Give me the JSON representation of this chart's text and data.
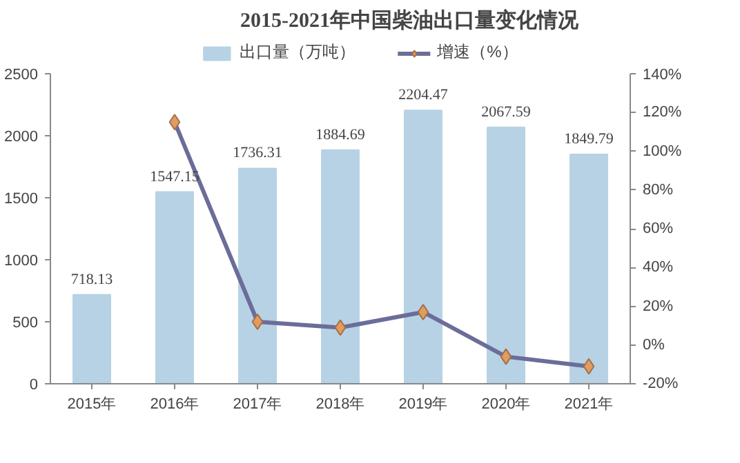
{
  "chart_data": {
    "type": "bar",
    "title": "2015-2021年中国柴油出口量变化情况",
    "categories": [
      "2015年",
      "2016年",
      "2017年",
      "2018年",
      "2019年",
      "2020年",
      "2021年"
    ],
    "series": [
      {
        "name": "出口量（万吨）",
        "color": "#b7d2e5",
        "values": [
          718.13,
          1547.15,
          1736.31,
          1884.69,
          2204.47,
          2067.59,
          1849.79
        ],
        "value_labels": [
          "718.13",
          "1547.15",
          "1736.31",
          "1884.69",
          "2204.47",
          "2067.59",
          "1849.79"
        ]
      },
      {
        "name": "增速（%）",
        "type": "line",
        "axis": "y2",
        "color": "#6b6d99",
        "values": [
          null,
          115,
          12,
          9,
          17,
          -6,
          -11
        ]
      }
    ],
    "ylim": [
      0,
      2500
    ],
    "yticks": [
      0,
      500,
      1000,
      1500,
      2000,
      2500
    ],
    "y2lim": [
      -20,
      140
    ],
    "y2ticks": [
      {
        "value": -20,
        "label": "-20%"
      },
      {
        "value": 0,
        "label": "0%"
      },
      {
        "value": 20,
        "label": "20%"
      },
      {
        "value": 40,
        "label": "40%"
      },
      {
        "value": 60,
        "label": "60%"
      },
      {
        "value": 80,
        "label": "80%"
      },
      {
        "value": 100,
        "label": "100%"
      },
      {
        "value": 120,
        "label": "120%"
      },
      {
        "value": 140,
        "label": "140%"
      }
    ],
    "marker": "diamond",
    "grid": false,
    "legend": "top"
  }
}
